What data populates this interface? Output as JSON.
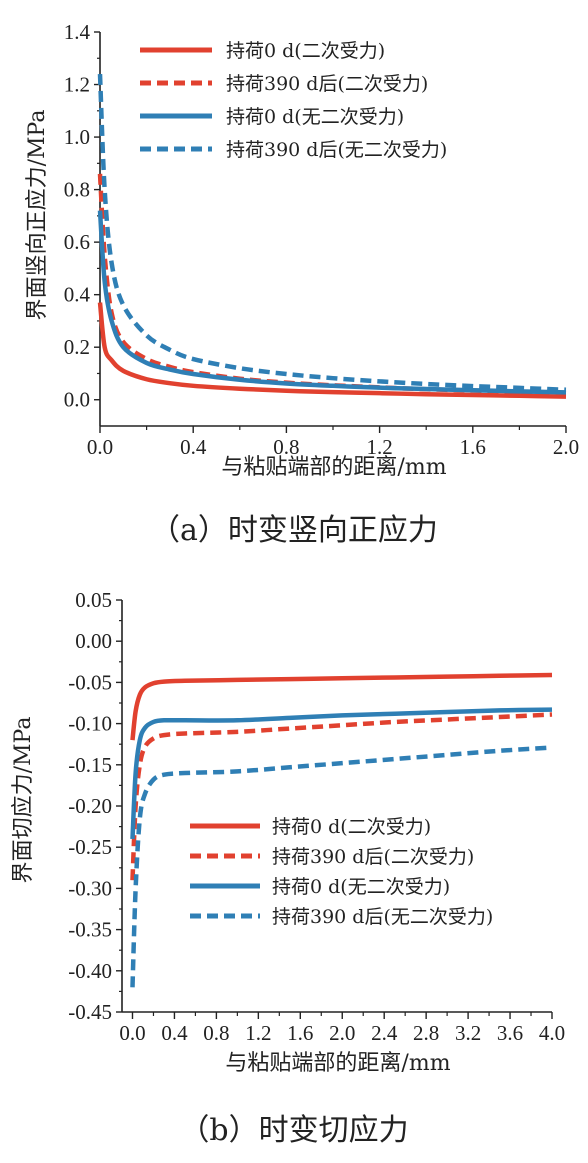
{
  "colors": {
    "red": "#e1412f",
    "blue": "#2f7fb5",
    "axis": "#222222"
  },
  "charts": [
    {
      "caption": "（a）时变竖向正应力",
      "ylabel": "界面竖向正应力/MPa",
      "xlabel": "与粘贴端部的距离/mm"
    },
    {
      "caption": "（b）时变切应力",
      "ylabel": "界面切应力/MPa",
      "xlabel": "与粘贴端部的距离/mm"
    }
  ],
  "chart_data": [
    {
      "type": "line",
      "caption": "（a）时变竖向正应力",
      "xlabel": "与粘贴端部的距离/mm",
      "ylabel": "界面竖向正应力/MPa",
      "xlim": [
        0,
        2.0
      ],
      "ylim": [
        -0.1,
        1.4
      ],
      "xticks": [
        "0.0",
        "0.4",
        "0.8",
        "1.2",
        "1.6",
        "2.0"
      ],
      "yticks": [
        "0.0",
        "0.2",
        "0.4",
        "0.6",
        "0.8",
        "1.0",
        "1.2",
        "1.4"
      ],
      "legend_position": "top-right",
      "series": [
        {
          "name": "持荷0 d(二次受力)",
          "color": "#e1412f",
          "dash": false,
          "x": [
            0,
            0.02,
            0.05,
            0.1,
            0.2,
            0.3,
            0.4,
            0.6,
            0.8,
            1.0,
            1.2,
            1.4,
            1.6,
            1.8,
            2.0
          ],
          "y": [
            0.37,
            0.2,
            0.15,
            0.11,
            0.078,
            0.063,
            0.053,
            0.042,
            0.034,
            0.029,
            0.025,
            0.021,
            0.018,
            0.015,
            0.012
          ]
        },
        {
          "name": "持荷390 d后(二次受力)",
          "color": "#e1412f",
          "dash": true,
          "x": [
            0,
            0.02,
            0.05,
            0.1,
            0.2,
            0.3,
            0.4,
            0.6,
            0.8,
            1.0,
            1.2,
            1.4,
            1.6,
            1.8,
            2.0
          ],
          "y": [
            0.86,
            0.55,
            0.33,
            0.22,
            0.155,
            0.125,
            0.105,
            0.08,
            0.065,
            0.055,
            0.047,
            0.04,
            0.035,
            0.03,
            0.025
          ]
        },
        {
          "name": "持荷0 d(无二次受力)",
          "color": "#2f7fb5",
          "dash": false,
          "x": [
            0,
            0.02,
            0.05,
            0.1,
            0.2,
            0.3,
            0.4,
            0.6,
            0.8,
            1.0,
            1.2,
            1.4,
            1.6,
            1.8,
            2.0
          ],
          "y": [
            0.72,
            0.45,
            0.3,
            0.2,
            0.14,
            0.115,
            0.098,
            0.076,
            0.062,
            0.053,
            0.046,
            0.041,
            0.036,
            0.032,
            0.028
          ]
        },
        {
          "name": "持荷390 d后(无二次受力)",
          "color": "#2f7fb5",
          "dash": true,
          "x": [
            0,
            0.02,
            0.05,
            0.1,
            0.2,
            0.3,
            0.4,
            0.6,
            0.8,
            1.0,
            1.2,
            1.4,
            1.6,
            1.8,
            2.0
          ],
          "y": [
            1.24,
            0.8,
            0.52,
            0.36,
            0.245,
            0.19,
            0.155,
            0.12,
            0.098,
            0.082,
            0.07,
            0.06,
            0.052,
            0.045,
            0.038
          ]
        }
      ]
    },
    {
      "type": "line",
      "caption": "（b）时变切应力",
      "xlabel": "与粘贴端部的距离/mm",
      "ylabel": "界面切应力/MPa",
      "xlim": [
        -0.1,
        4.0
      ],
      "ylim": [
        -0.45,
        0.05
      ],
      "xticks": [
        "0.0",
        "0.4",
        "0.8",
        "1.2",
        "1.6",
        "2.0",
        "2.4",
        "2.8",
        "3.2",
        "3.6",
        "4.0"
      ],
      "yticks": [
        "-0.45",
        "-0.40",
        "-0.35",
        "-0.30",
        "-0.25",
        "-0.20",
        "-0.15",
        "-0.10",
        "-0.05",
        "0.00",
        "0.05"
      ],
      "legend_position": "center",
      "series": [
        {
          "name": "持荷0 d(二次受力)",
          "color": "#e1412f",
          "dash": false,
          "x": [
            0,
            0.03,
            0.07,
            0.12,
            0.2,
            0.3,
            0.5,
            1.0,
            1.5,
            2.0,
            2.5,
            3.0,
            3.5,
            4.0
          ],
          "y": [
            -0.12,
            -0.085,
            -0.065,
            -0.056,
            -0.051,
            -0.049,
            -0.048,
            -0.047,
            -0.046,
            -0.045,
            -0.044,
            -0.043,
            -0.042,
            -0.041
          ]
        },
        {
          "name": "持荷390 d后(二次受力)",
          "color": "#e1412f",
          "dash": true,
          "x": [
            0,
            0.03,
            0.07,
            0.12,
            0.2,
            0.3,
            0.5,
            1.0,
            1.5,
            2.0,
            2.5,
            3.0,
            3.5,
            4.0
          ],
          "y": [
            -0.29,
            -0.2,
            -0.15,
            -0.128,
            -0.118,
            -0.114,
            -0.112,
            -0.11,
            -0.106,
            -0.102,
            -0.098,
            -0.095,
            -0.092,
            -0.089
          ]
        },
        {
          "name": "持荷0 d(无二次受力)",
          "color": "#2f7fb5",
          "dash": false,
          "x": [
            0,
            0.03,
            0.07,
            0.12,
            0.2,
            0.3,
            0.5,
            1.0,
            1.5,
            2.0,
            2.5,
            3.0,
            3.5,
            4.0
          ],
          "y": [
            -0.24,
            -0.16,
            -0.12,
            -0.105,
            -0.098,
            -0.096,
            -0.096,
            -0.096,
            -0.093,
            -0.09,
            -0.088,
            -0.086,
            -0.084,
            -0.083
          ]
        },
        {
          "name": "持荷390 d后(无二次受力)",
          "color": "#2f7fb5",
          "dash": true,
          "x": [
            0,
            0.03,
            0.07,
            0.12,
            0.2,
            0.3,
            0.5,
            1.0,
            1.5,
            2.0,
            2.5,
            3.0,
            3.5,
            4.0
          ],
          "y": [
            -0.42,
            -0.3,
            -0.215,
            -0.185,
            -0.168,
            -0.162,
            -0.16,
            -0.158,
            -0.153,
            -0.148,
            -0.143,
            -0.138,
            -0.133,
            -0.129
          ]
        }
      ]
    }
  ]
}
